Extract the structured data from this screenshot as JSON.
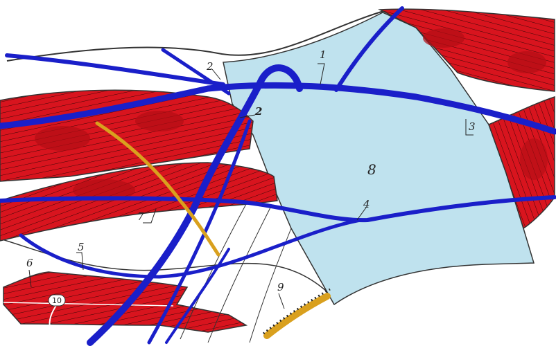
{
  "labels": {
    "l1": "1",
    "l2a": "2",
    "l2b": "2",
    "l3": "3",
    "l4": "4",
    "l5": "5",
    "l6": "6",
    "l7": "7",
    "l8": "8",
    "l9": "9",
    "l10": "10"
  },
  "colors": {
    "muscle": "#d8141e",
    "muscle_dark": "#b30d14",
    "vessel": "#1a1fc9",
    "nerve": "#d9a01e",
    "region_fill": "#bfe2ee",
    "outline": "#333333"
  }
}
